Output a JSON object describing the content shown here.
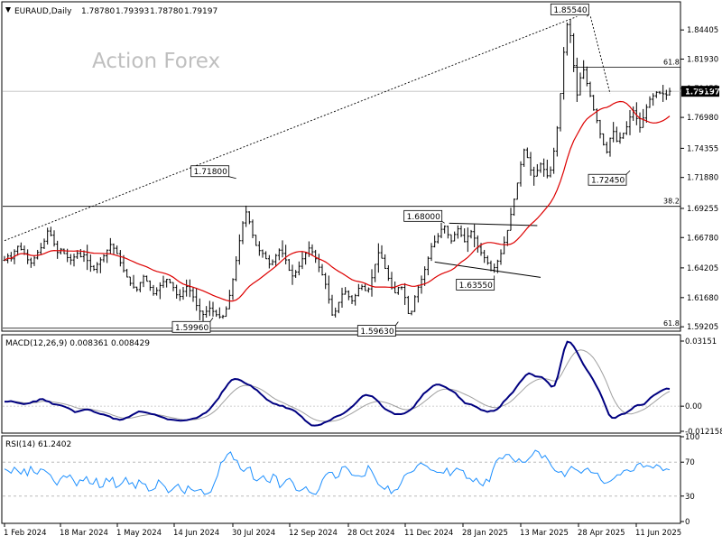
{
  "chart_data": [
    {
      "type": "ohlc",
      "title": "EURAUD,Daily",
      "ohlc": {
        "open": "1.78780",
        "high": "1.79393",
        "low": "1.78780",
        "close": "1.79197"
      },
      "current_price": 1.79197,
      "current_price_label": "1.79197",
      "watermark": "Action Forex",
      "ylim": [
        1.5891,
        1.8664
      ],
      "y_ticks": [
        "1.84405",
        "1.81930",
        "1.79455",
        "1.76980",
        "1.74355",
        "1.71880",
        "1.69255",
        "1.66780",
        "1.64205",
        "1.61680",
        "1.59205"
      ],
      "x_tick_labels": [
        "1 Feb 2024",
        "18 Mar 2024",
        "1 May 2024",
        "14 Jun 2024",
        "30 Jul 2024",
        "12 Sep 2024",
        "28 Oct 2024",
        "11 Dec 2024",
        "28 Jan 2025",
        "13 Mar 2025",
        "28 Apr 2025",
        "11 Jun 2025"
      ],
      "annotations": [
        {
          "label": "1.85540",
          "value": 1.8554
        },
        {
          "label": "1.71800",
          "value": 1.718
        },
        {
          "label": "1.68000",
          "value": 1.68
        },
        {
          "label": "1.63550",
          "value": 1.6355
        },
        {
          "label": "1.72450",
          "value": 1.7245
        },
        {
          "label": "1.59960",
          "value": 1.5996
        },
        {
          "label": "1.59630",
          "value": 1.5963
        }
      ],
      "fib_levels": [
        {
          "label": "61.8",
          "value": 1.8124
        },
        {
          "label": "38.2",
          "value": 1.6943
        },
        {
          "label": "61.8",
          "value": 1.5908
        }
      ],
      "close_series": [
        1.6485,
        1.6521,
        1.6498,
        1.6562,
        1.6603,
        1.6577,
        1.6542,
        1.6489,
        1.6461,
        1.6505,
        1.6552,
        1.6591,
        1.6647,
        1.6733,
        1.6698,
        1.6622,
        1.6551,
        1.6579,
        1.6542,
        1.6508,
        1.6487,
        1.6513,
        1.6544,
        1.6516,
        1.6531,
        1.6483,
        1.6432,
        1.6408,
        1.6451,
        1.6489,
        1.6523,
        1.6571,
        1.6619,
        1.6587,
        1.6541,
        1.6464,
        1.6398,
        1.6343,
        1.6289,
        1.6257,
        1.6236,
        1.6296,
        1.6348,
        1.6307,
        1.6255,
        1.6201,
        1.6229,
        1.6271,
        1.6304,
        1.6323,
        1.6296,
        1.6254,
        1.6192,
        1.6178,
        1.6221,
        1.6262,
        1.6228,
        1.6174,
        1.6101,
        1.6053,
        1.6025,
        1.6052,
        1.6078,
        1.6051,
        1.6023,
        1.6004,
        1.6009,
        1.6073,
        1.6187,
        1.6322,
        1.6483,
        1.6651,
        1.6802,
        1.6895,
        1.6811,
        1.6698,
        1.6611,
        1.6567,
        1.6543,
        1.6498,
        1.6452,
        1.6473,
        1.6526,
        1.6571,
        1.6543,
        1.6488,
        1.6401,
        1.6352,
        1.6385,
        1.6434,
        1.6498,
        1.6544,
        1.6589,
        1.6557,
        1.6498,
        1.6426,
        1.6362,
        1.6281,
        1.6153,
        1.6021,
        1.6053,
        1.6128,
        1.6197,
        1.6219,
        1.6176,
        1.6141,
        1.6185,
        1.6247,
        1.6263,
        1.6228,
        1.6242,
        1.6337,
        1.6451,
        1.6549,
        1.6502,
        1.6416,
        1.6332,
        1.6251,
        1.6208,
        1.6253,
        1.6255,
        1.6169,
        1.6033,
        1.6051,
        1.6175,
        1.6257,
        1.6323,
        1.6407,
        1.6502,
        1.6601,
        1.6642,
        1.6689,
        1.6748,
        1.6773,
        1.6702,
        1.6649,
        1.6704,
        1.6752,
        1.6697,
        1.6643,
        1.6689,
        1.6728,
        1.6673,
        1.6597,
        1.6549,
        1.6507,
        1.6462,
        1.6401,
        1.6423,
        1.6478,
        1.6542,
        1.6638,
        1.6739,
        1.6874,
        1.7003,
        1.7141,
        1.7298,
        1.7422,
        1.7356,
        1.7251,
        1.7199,
        1.7248,
        1.7302,
        1.7256,
        1.7202,
        1.7251,
        1.7412,
        1.7608,
        1.7902,
        1.8251,
        1.8486,
        1.8392,
        1.8138,
        1.7889,
        1.8034,
        1.8102,
        1.7986,
        1.7881,
        1.7762,
        1.7671,
        1.7558,
        1.7467,
        1.7404,
        1.7521,
        1.7578,
        1.7497,
        1.7524,
        1.7563,
        1.7618,
        1.7701,
        1.7754,
        1.7689,
        1.7612,
        1.7693,
        1.7784,
        1.7852,
        1.7881,
        1.7911,
        1.7905,
        1.7898,
        1.7889,
        1.792
      ],
      "annotation_points": [
        {
          "label": "1.85540",
          "index": 176
        },
        {
          "label": "1.71800",
          "index": 70
        },
        {
          "label": "1.68000",
          "index": 133
        },
        {
          "label": "1.63550",
          "index": 148
        },
        {
          "label": "1.72450",
          "index": 189
        },
        {
          "label": "1.59960",
          "index": 63
        },
        {
          "label": "1.59630",
          "index": 119
        }
      ],
      "trendline_points": [
        {
          "index": 0,
          "value": 1.6652
        },
        {
          "index": 173,
          "value": 1.8554
        }
      ],
      "ma_color": "#dd0000",
      "bar_color": "#000000"
    },
    {
      "type": "line",
      "title": "MACD(12,26,9) 0.008361 0.008429",
      "y_ticks": [
        "0.03151",
        "0.00",
        "-0.012158"
      ],
      "ylim": [
        -0.012158,
        0.03151
      ],
      "series": [
        {
          "name": "MACD",
          "color": "#000080",
          "values": [
            0.00223,
            0.00221,
            0.00246,
            0.00208,
            0.00165,
            0.00139,
            0.00099,
            0.00123,
            0.00152,
            0.00229,
            0.00231,
            0.00334,
            0.00343,
            0.00251,
            0.00215,
            0.00108,
            0.00085,
            0.0006,
            0.00022,
            -0.00038,
            -0.00096,
            -0.00177,
            -0.00288,
            -0.00253,
            -0.00211,
            -0.00166,
            -0.00157,
            -0.00193,
            -0.00276,
            -0.00329,
            -0.00382,
            -0.00403,
            -0.00457,
            -0.00504,
            -0.00603,
            -0.00611,
            -0.0066,
            -0.00638,
            -0.00565,
            -0.00511,
            -0.00419,
            -0.00336,
            -0.00257,
            -0.00273,
            -0.00298,
            -0.00334,
            -0.00381,
            -0.00405,
            -0.00464,
            -0.00515,
            -0.00569,
            -0.0064,
            -0.00646,
            -0.00667,
            -0.00689,
            -0.00705,
            -0.00691,
            -0.00673,
            -0.00639,
            -0.00595,
            -0.00572,
            -0.00493,
            -0.00382,
            -0.0031,
            -0.00171,
            0.00017,
            0.00218,
            0.00396,
            0.00674,
            0.00868,
            0.01096,
            0.01263,
            0.01318,
            0.01299,
            0.01239,
            0.01137,
            0.01056,
            0.00999,
            0.00862,
            0.00769,
            0.00609,
            0.00472,
            0.00325,
            0.00233,
            0.00134,
            0.00096,
            0.00026,
            0.00018,
            -0.00085,
            -0.00119,
            -0.00171,
            -0.00257,
            -0.00395,
            -0.00519,
            -0.00691,
            -0.00809,
            -0.00928,
            -0.00937,
            -0.0092,
            -0.00885,
            -0.00794,
            -0.00737,
            -0.00666,
            -0.00548,
            -0.00482,
            -0.00432,
            -0.0035,
            -0.00242,
            -0.0011,
            0.00015,
            0.00172,
            0.00344,
            0.00488,
            0.00546,
            0.00509,
            0.00474,
            0.0035,
            0.00209,
            8e-05,
            -0.00133,
            -0.00214,
            -0.00289,
            -0.00388,
            -0.00382,
            -0.00384,
            -0.00351,
            -0.0027,
            -0.00166,
            -0.00038,
            0.00201,
            0.00378,
            0.00596,
            0.00716,
            0.0085,
            0.00982,
            0.01046,
            0.01041,
            0.0098,
            0.00914,
            0.00812,
            0.00732,
            0.00641,
            0.00448,
            0.00307,
            0.00147,
            0.00111,
            0.0008,
            3e-05,
            -0.00077,
            -0.00175,
            -0.00216,
            -0.00279,
            -0.00227,
            -0.00229,
            -0.00151,
            -0.00023,
            0.00209,
            0.0035,
            0.00526,
            0.0068,
            0.00905,
            0.01125,
            0.01305,
            0.01496,
            0.01593,
            0.01537,
            0.01443,
            0.01427,
            0.01409,
            0.01288,
            0.0114,
            0.00947,
            0.00999,
            0.01434,
            0.02081,
            0.02733,
            0.03122,
            0.03078,
            0.02891,
            0.02632,
            0.02326,
            0.02027,
            0.0178,
            0.01551,
            0.01296,
            0.01007,
            0.00726,
            0.00374,
            -0.0001,
            -0.00404,
            -0.00562,
            -0.00566,
            -0.00461,
            -0.00385,
            -0.00359,
            -0.00259,
            -0.00153,
            -0.00016,
            0.00057,
            0.00057,
            0.00091,
            0.00243,
            0.00403,
            0.00524,
            0.00615,
            0.00711,
            0.00794,
            0.00852,
            0.00835
          ]
        },
        {
          "name": "Signal",
          "color": "#a0a0a0",
          "values": [
            0.00223,
            0.00223,
            0.00223,
            0.00223,
            0.00223,
            0.0019,
            0.00164,
            0.0015,
            0.00149,
            0.00164,
            0.00178,
            0.00209,
            0.00236,
            0.00239,
            0.00234,
            0.00209,
            0.00184,
            0.0016,
            0.00133,
            0.001,
            0.00061,
            0.00014,
            -0.00047,
            -0.00089,
            -0.00114,
            -0.00124,
            -0.00131,
            -0.00144,
            -0.00175,
            -0.00205,
            -0.00241,
            -0.00279,
            -0.00321,
            -0.00371,
            -0.00433,
            -0.00481,
            -0.00531,
            -0.00565,
            -0.00579,
            -0.00582,
            -0.00566,
            -0.00535,
            -0.00495,
            -0.00465,
            -0.00437,
            -0.00413,
            -0.00399,
            -0.00399,
            -0.00412,
            -0.00432,
            -0.0046,
            -0.00498,
            -0.00533,
            -0.00564,
            -0.00596,
            -0.00625,
            -0.00646,
            -0.00657,
            -0.00662,
            -0.00658,
            -0.00645,
            -0.00619,
            -0.00575,
            -0.00526,
            -0.00456,
            -0.0036,
            -0.00246,
            -0.00109,
            0.00068,
            0.00239,
            0.00408,
            0.00579,
            0.00728,
            0.00848,
            0.00942,
            0.00993,
            0.0101,
            0.00996,
            0.00969,
            0.00925,
            0.00864,
            0.0078,
            0.00673,
            0.00567,
            0.00454,
            0.00353,
            0.0027,
            0.00207,
            0.00132,
            0.00059,
            -0.00013,
            -0.00081,
            -0.00155,
            -0.00234,
            -0.00328,
            -0.00428,
            -0.00529,
            -0.00615,
            -0.00674,
            -0.00712,
            -0.00724,
            -0.00735,
            -0.00741,
            -0.00726,
            -0.00699,
            -0.0066,
            -0.00599,
            -0.00523,
            -0.00438,
            -0.00355,
            -0.00263,
            -0.0017,
            -0.00075,
            0.00017,
            0.00089,
            0.00153,
            0.00201,
            0.00228,
            0.00229,
            0.00204,
            0.00166,
            0.00118,
            0.00056,
            -0.00014,
            -0.00083,
            -0.00141,
            -0.00169,
            -0.00169,
            -0.00141,
            -0.00083,
            1e-05,
            0.00108,
            0.00228,
            0.00353,
            0.00478,
            0.00602,
            0.00713,
            0.00782,
            0.00818,
            0.00833,
            0.00829,
            0.00802,
            0.00752,
            0.00691,
            0.00624,
            0.00554,
            0.00482,
            0.00403,
            0.00314,
            0.00222,
            0.00137,
            0.00057,
            -2e-05,
            -0.00046,
            -0.0007,
            -0.00063,
            -0.00016,
            0.00042,
            0.00115,
            0.00219,
            0.00354,
            0.00503,
            0.00653,
            0.00807,
            0.00958,
            0.01081,
            0.01179,
            0.01259,
            0.01312,
            0.01331,
            0.01327,
            0.01295,
            0.01243,
            0.01223,
            0.01317,
            0.01534,
            0.01818,
            0.02107,
            0.02361,
            0.02559,
            0.02684,
            0.02724,
            0.02696,
            0.02627,
            0.0251,
            0.02341,
            0.02121,
            0.0186,
            0.01559,
            0.0122,
            0.0084,
            0.00471,
            0.00174,
            -0.00059,
            -0.00219,
            -0.00322,
            -0.00369,
            -0.00371,
            -0.00335,
            -0.0028,
            -0.00216,
            -0.00144,
            -0.00049,
            0.00063,
            0.00181,
            0.00302,
            0.00422,
            0.00536,
            0.0064,
            0.00718
          ]
        }
      ]
    },
    {
      "type": "line",
      "title": "RSI(14) 61.2402",
      "y_ticks": [
        "100",
        "70",
        "30",
        "0"
      ],
      "ylim": [
        0,
        100
      ],
      "levels": [
        70,
        30
      ],
      "series": [
        {
          "name": "RSI",
          "color": "#1e90ff",
          "values": [
            62,
            60,
            57,
            64,
            60,
            56,
            62,
            54,
            65,
            58,
            56,
            62,
            61,
            58,
            55,
            48,
            43,
            50,
            54,
            52,
            55,
            49,
            42,
            49,
            48,
            53,
            45,
            44,
            51,
            40,
            41,
            51,
            47,
            52,
            40,
            42,
            46,
            52,
            44,
            46,
            39,
            49,
            45,
            44,
            36,
            37,
            39,
            49,
            45,
            41,
            34,
            37,
            41,
            44,
            37,
            33,
            42,
            38,
            36,
            37,
            38,
            32,
            33,
            35,
            45,
            54,
            69,
            72,
            79,
            82,
            73,
            72,
            62,
            59,
            63,
            64,
            50,
            48,
            51,
            54,
            48,
            46,
            56,
            53,
            40,
            44,
            49,
            51,
            46,
            37,
            36,
            38,
            41,
            35,
            33,
            32,
            38,
            49,
            55,
            58,
            58,
            51,
            53,
            64,
            65,
            61,
            55,
            54,
            54,
            53,
            54,
            66,
            60,
            52,
            44,
            41,
            38,
            42,
            33,
            37,
            38,
            45,
            54,
            57,
            58,
            60,
            66,
            69,
            67,
            65,
            61,
            60,
            58,
            58,
            57,
            63,
            54,
            59,
            63,
            61,
            60,
            51,
            51,
            47,
            51,
            45,
            42,
            50,
            47,
            61,
            71,
            75,
            74,
            79,
            79,
            74,
            70,
            74,
            70,
            70,
            74,
            78,
            84,
            82,
            75,
            78,
            72,
            65,
            60,
            58,
            59,
            53,
            60,
            65,
            62,
            60,
            57,
            61,
            63,
            58,
            57,
            57,
            49,
            45,
            46,
            48,
            51,
            55,
            55,
            60,
            61,
            59,
            60,
            67,
            69,
            64,
            66,
            65,
            63,
            67,
            65,
            60,
            62,
            61
          ]
        }
      ]
    }
  ]
}
